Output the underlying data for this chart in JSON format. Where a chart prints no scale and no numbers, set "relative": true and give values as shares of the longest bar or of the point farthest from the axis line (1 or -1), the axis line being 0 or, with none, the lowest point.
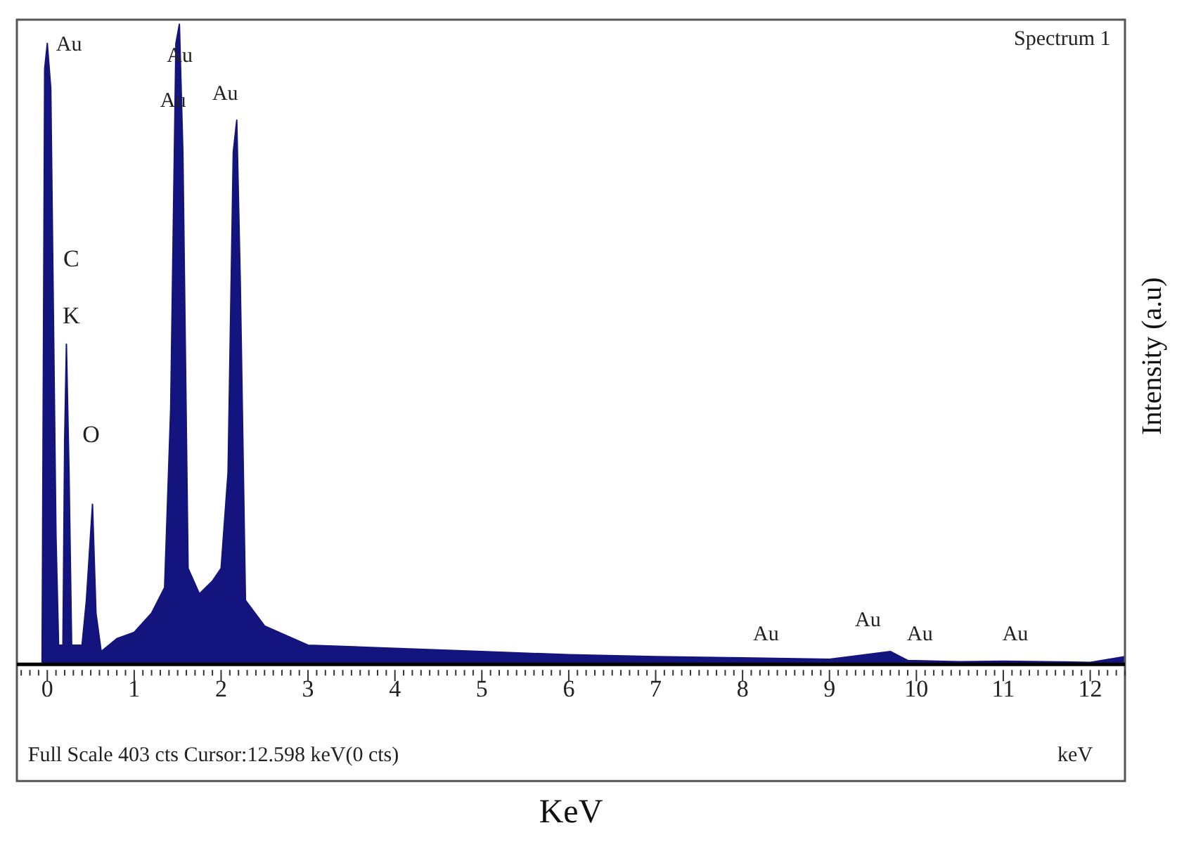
{
  "chart_data": {
    "type": "area",
    "xlabel": "KeV",
    "ylabel": "Intensity (a.u)",
    "relative": true,
    "grid": false,
    "legend": false,
    "xlim": [
      -0.35,
      12.4
    ],
    "xticks": [
      0,
      1,
      2,
      3,
      4,
      5,
      6,
      7,
      8,
      9,
      10,
      11,
      12
    ],
    "series": [
      {
        "color": "#14147f",
        "x": [
          -0.06,
          -0.03,
          0.0,
          0.04,
          0.07,
          0.1,
          0.13,
          0.18,
          0.2,
          0.22,
          0.25,
          0.28,
          0.4,
          0.45,
          0.52,
          0.56,
          0.62,
          0.8,
          1.0,
          1.2,
          1.35,
          1.42,
          1.48,
          1.52,
          1.56,
          1.62,
          1.75,
          1.9,
          2.0,
          2.08,
          2.14,
          2.18,
          2.22,
          2.28,
          2.5,
          3.0,
          4.0,
          5.0,
          6.0,
          7.0,
          8.0,
          9.0,
          9.7,
          9.9,
          10.5,
          11.0,
          12.0,
          12.4
        ],
        "values": [
          0,
          0.93,
          0.97,
          0.9,
          0.55,
          0.2,
          0.03,
          0.03,
          0.35,
          0.5,
          0.3,
          0.03,
          0.03,
          0.1,
          0.25,
          0.08,
          0.02,
          0.04,
          0.05,
          0.08,
          0.12,
          0.4,
          0.97,
          1.0,
          0.8,
          0.15,
          0.11,
          0.13,
          0.15,
          0.3,
          0.8,
          0.85,
          0.6,
          0.1,
          0.06,
          0.03,
          0.025,
          0.02,
          0.015,
          0.012,
          0.01,
          0.008,
          0.02,
          0.006,
          0.004,
          0.005,
          0.003,
          0.012
        ]
      }
    ],
    "annotations": [
      "Au",
      "Au",
      "Au",
      "Au",
      "C",
      "K",
      "O",
      "Au",
      "Au",
      "Au",
      "Au",
      "Spectrum 1",
      "Full Scale 403 cts Cursor:12.598 keV(0 cts)",
      "keV"
    ]
  }
}
